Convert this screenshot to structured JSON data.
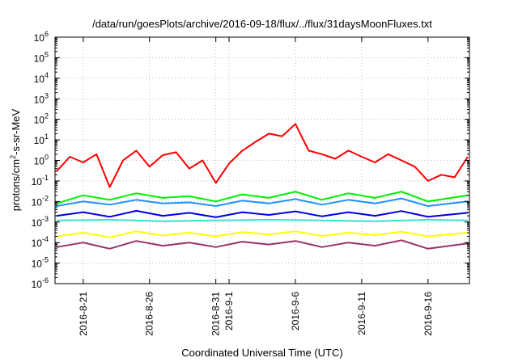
{
  "chart_data": {
    "type": "line",
    "title": "/data/run/goesPlots/archive/2016-09-18/flux/../flux/31daysMoonFluxes.txt",
    "xlabel": "Coordinated Universal Time (UTC)",
    "ylabel_parts": {
      "base": "protons/cm",
      "sup": "2",
      "tail": "-s-sr-MeV"
    },
    "xlim": [
      "2016-08-18T21:00",
      "2016-09-19T03:00"
    ],
    "ylim": [
      1e-06,
      1000000.0
    ],
    "yscale": "log",
    "grid": true,
    "xticks": [
      {
        "date": "2016-08-21",
        "label": "2016-8-21"
      },
      {
        "date": "2016-08-26",
        "label": "2016-8-26"
      },
      {
        "date": "2016-08-31",
        "label": "2016-8-31"
      },
      {
        "date": "2016-09-01",
        "label": "2016-9-1"
      },
      {
        "date": "2016-09-06",
        "label": "2016-9-6"
      },
      {
        "date": "2016-09-11",
        "label": "2016-9-11"
      },
      {
        "date": "2016-09-16",
        "label": "2016-9-16"
      }
    ],
    "yticks": [
      {
        "value": 1e-06,
        "base": "10",
        "exp": "-6"
      },
      {
        "value": 1e-05,
        "base": "10",
        "exp": "-5"
      },
      {
        "value": 0.0001,
        "base": "10",
        "exp": "-4"
      },
      {
        "value": 0.001,
        "base": "10",
        "exp": "-3"
      },
      {
        "value": 0.01,
        "base": "10",
        "exp": "-2"
      },
      {
        "value": 0.1,
        "base": "10",
        "exp": "-1"
      },
      {
        "value": 1,
        "base": "10",
        "exp": "0"
      },
      {
        "value": 10,
        "base": "10",
        "exp": "1"
      },
      {
        "value": 100,
        "base": "10",
        "exp": "2"
      },
      {
        "value": 1000,
        "base": "10",
        "exp": "3"
      },
      {
        "value": 10000,
        "base": "10",
        "exp": "4"
      },
      {
        "value": 100000,
        "base": "10",
        "exp": "5"
      },
      {
        "value": 1000000,
        "base": "10",
        "exp": "6"
      }
    ],
    "series": [
      {
        "color": "#ff0000",
        "x": [
          "2016-08-19",
          "2016-08-20",
          "2016-08-21",
          "2016-08-22",
          "2016-08-23",
          "2016-08-24",
          "2016-08-25",
          "2016-08-26",
          "2016-08-27",
          "2016-08-28",
          "2016-08-29",
          "2016-08-30",
          "2016-08-31",
          "2016-09-01",
          "2016-09-02",
          "2016-09-03",
          "2016-09-04",
          "2016-09-05",
          "2016-09-06",
          "2016-09-07",
          "2016-09-08",
          "2016-09-09",
          "2016-09-10",
          "2016-09-11",
          "2016-09-12",
          "2016-09-13",
          "2016-09-14",
          "2016-09-15",
          "2016-09-16",
          "2016-09-17",
          "2016-09-18",
          "2016-09-19"
        ],
        "y": [
          0.3,
          1.5,
          0.8,
          2.0,
          0.05,
          1.0,
          3.0,
          0.5,
          1.8,
          2.5,
          0.4,
          1.0,
          0.08,
          0.7,
          3.0,
          8.0,
          20,
          15,
          60,
          3.0,
          2.0,
          1.2,
          3.0,
          1.5,
          0.8,
          2.0,
          1.0,
          0.5,
          0.1,
          0.2,
          0.15,
          1.5
        ]
      },
      {
        "color": "#00ee00",
        "x": [
          "2016-08-19",
          "2016-08-21",
          "2016-08-23",
          "2016-08-25",
          "2016-08-27",
          "2016-08-29",
          "2016-08-31",
          "2016-09-02",
          "2016-09-04",
          "2016-09-06",
          "2016-09-08",
          "2016-09-10",
          "2016-09-12",
          "2016-09-14",
          "2016-09-16",
          "2016-09-19"
        ],
        "y": [
          0.008,
          0.02,
          0.012,
          0.025,
          0.015,
          0.018,
          0.01,
          0.022,
          0.015,
          0.03,
          0.012,
          0.025,
          0.015,
          0.03,
          0.01,
          0.02
        ]
      },
      {
        "color": "#1e90ff",
        "x": [
          "2016-08-19",
          "2016-08-21",
          "2016-08-23",
          "2016-08-25",
          "2016-08-27",
          "2016-08-29",
          "2016-08-31",
          "2016-09-02",
          "2016-09-04",
          "2016-09-06",
          "2016-09-08",
          "2016-09-10",
          "2016-09-12",
          "2016-09-14",
          "2016-09-16",
          "2016-09-19"
        ],
        "y": [
          0.006,
          0.01,
          0.007,
          0.012,
          0.008,
          0.009,
          0.006,
          0.011,
          0.008,
          0.013,
          0.007,
          0.012,
          0.008,
          0.014,
          0.006,
          0.01
        ]
      },
      {
        "color": "#0000dd",
        "x": [
          "2016-08-19",
          "2016-08-21",
          "2016-08-23",
          "2016-08-25",
          "2016-08-27",
          "2016-08-29",
          "2016-08-31",
          "2016-09-02",
          "2016-09-04",
          "2016-09-06",
          "2016-09-08",
          "2016-09-10",
          "2016-09-12",
          "2016-09-14",
          "2016-09-16",
          "2016-09-19"
        ],
        "y": [
          0.002,
          0.003,
          0.0018,
          0.0035,
          0.002,
          0.0028,
          0.0017,
          0.003,
          0.0022,
          0.0033,
          0.0019,
          0.003,
          0.002,
          0.0034,
          0.0018,
          0.0028
        ]
      },
      {
        "color": "#40e0d0",
        "x": [
          "2016-08-19",
          "2016-08-23",
          "2016-08-27",
          "2016-08-31",
          "2016-09-04",
          "2016-09-08",
          "2016-09-12",
          "2016-09-16",
          "2016-09-19"
        ],
        "y": [
          0.0012,
          0.0013,
          0.0011,
          0.0012,
          0.0013,
          0.0012,
          0.0011,
          0.0013,
          0.0012
        ]
      },
      {
        "color": "#ffff00",
        "x": [
          "2016-08-19",
          "2016-08-21",
          "2016-08-23",
          "2016-08-25",
          "2016-08-27",
          "2016-08-29",
          "2016-08-31",
          "2016-09-02",
          "2016-09-04",
          "2016-09-06",
          "2016-09-08",
          "2016-09-10",
          "2016-09-12",
          "2016-09-14",
          "2016-09-16",
          "2016-09-19"
        ],
        "y": [
          0.0002,
          0.0003,
          0.00018,
          0.00035,
          0.00022,
          0.0003,
          0.0002,
          0.00032,
          0.00025,
          0.00035,
          0.00021,
          0.0003,
          0.00023,
          0.00034,
          0.0002,
          0.0003
        ]
      },
      {
        "color": "#993366",
        "x": [
          "2016-08-19",
          "2016-08-21",
          "2016-08-23",
          "2016-08-25",
          "2016-08-27",
          "2016-08-29",
          "2016-08-31",
          "2016-09-02",
          "2016-09-04",
          "2016-09-06",
          "2016-09-08",
          "2016-09-10",
          "2016-09-12",
          "2016-09-14",
          "2016-09-16",
          "2016-09-19"
        ],
        "y": [
          6e-05,
          0.0001,
          5e-05,
          0.00012,
          7e-05,
          0.0001,
          6e-05,
          0.00011,
          8e-05,
          0.00012,
          6e-05,
          0.0001,
          7e-05,
          0.00013,
          5e-05,
          9e-05
        ]
      }
    ]
  }
}
